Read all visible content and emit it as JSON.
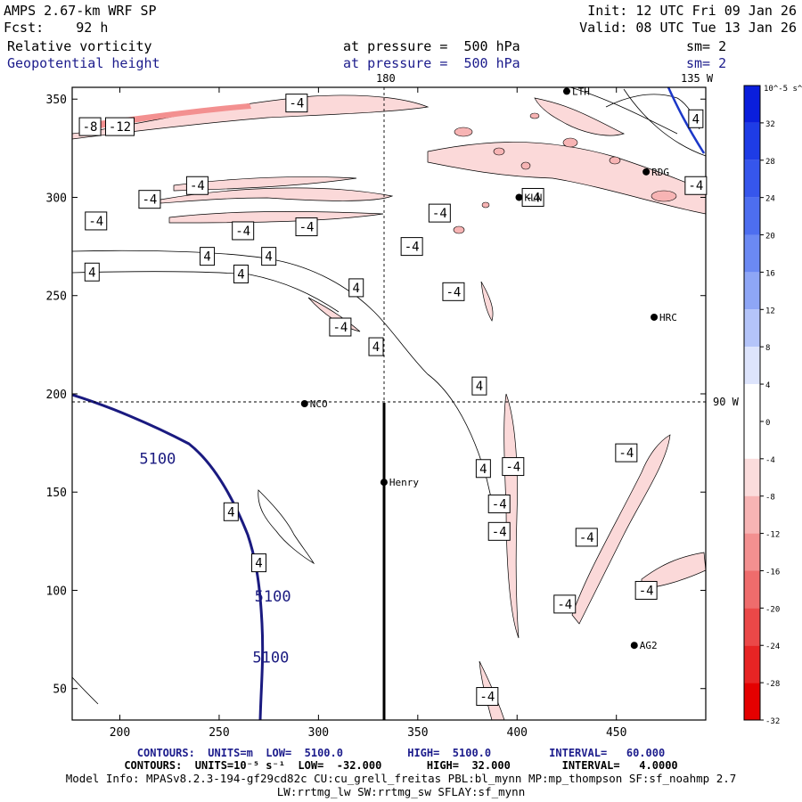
{
  "header": {
    "title": "AMPS 2.67-km WRF SP",
    "init": "Init: 12 UTC Fri 09 Jan 26",
    "fcst": "Fcst:    92 h",
    "valid": "Valid: 08 UTC Tue 13 Jan 26",
    "field1_name": "Relative vorticity",
    "field1_level": "at pressure =  500 hPa",
    "field1_sm": "sm= 2",
    "field2_name": "Geopotential height",
    "field2_level": "at pressure =  500 hPa",
    "field2_sm": "sm= 2",
    "meridian_label": "180",
    "meridian_label2": "135 W",
    "parallel_label": "90 W"
  },
  "stations": [
    {
      "name": "NCO",
      "x": 293,
      "y": 195
    },
    {
      "name": "Henry",
      "x": 333,
      "y": 155
    },
    {
      "name": "KLN",
      "x": 401,
      "y": 300
    },
    {
      "name": "RDG",
      "x": 465,
      "y": 313
    },
    {
      "name": "HRC",
      "x": 469,
      "y": 239
    },
    {
      "name": "AG2",
      "x": 459,
      "y": 72
    },
    {
      "name": "LTH",
      "x": 425,
      "y": 354
    }
  ],
  "chart_data": {
    "type": "contour",
    "title": "Relative vorticity / Geopotential height at 500 hPa",
    "x_ticks": [
      200,
      250,
      300,
      350,
      400,
      450
    ],
    "y_ticks": [
      50,
      100,
      150,
      200,
      250,
      300,
      350
    ],
    "xlim": [
      176,
      495
    ],
    "ylim": [
      34,
      356
    ],
    "height_contour_labels": [
      {
        "text": "5100",
        "x": 219,
        "y": 167
      },
      {
        "text": "5100",
        "x": 277,
        "y": 97
      },
      {
        "text": "5100",
        "x": 276,
        "y": 66
      }
    ],
    "vorticity_labels": [
      {
        "text": "-8",
        "x": 185,
        "y": 336
      },
      {
        "text": "-12",
        "x": 200,
        "y": 336
      },
      {
        "text": "-4",
        "x": 289,
        "y": 348
      },
      {
        "text": "-4",
        "x": 239,
        "y": 306
      },
      {
        "text": "-4",
        "x": 215,
        "y": 299
      },
      {
        "text": "-4",
        "x": 188,
        "y": 288
      },
      {
        "text": "-4",
        "x": 262,
        "y": 283
      },
      {
        "text": "-4",
        "x": 294,
        "y": 285
      },
      {
        "text": "-4",
        "x": 361,
        "y": 292
      },
      {
        "text": "-4",
        "x": 347,
        "y": 275
      },
      {
        "text": "4",
        "x": 244,
        "y": 270
      },
      {
        "text": "4",
        "x": 275,
        "y": 270
      },
      {
        "text": "4",
        "x": 186,
        "y": 262
      },
      {
        "text": "4",
        "x": 261,
        "y": 261
      },
      {
        "text": "4",
        "x": 319,
        "y": 254
      },
      {
        "text": "-4",
        "x": 368,
        "y": 252
      },
      {
        "text": "-4",
        "x": 311,
        "y": 234
      },
      {
        "text": "4",
        "x": 329,
        "y": 224
      },
      {
        "text": "4",
        "x": 381,
        "y": 204
      },
      {
        "text": "-4",
        "x": 408,
        "y": 300
      },
      {
        "text": "-4",
        "x": 490,
        "y": 306
      },
      {
        "text": "4",
        "x": 490,
        "y": 340
      },
      {
        "text": "-4",
        "x": 455,
        "y": 170
      },
      {
        "text": "4",
        "x": 383,
        "y": 162
      },
      {
        "text": "-4",
        "x": 398,
        "y": 163
      },
      {
        "text": "-4",
        "x": 391,
        "y": 144
      },
      {
        "text": "-4",
        "x": 391,
        "y": 130
      },
      {
        "text": "4",
        "x": 256,
        "y": 140
      },
      {
        "text": "4",
        "x": 270,
        "y": 114
      },
      {
        "text": "-4",
        "x": 435,
        "y": 127
      },
      {
        "text": "-4",
        "x": 465,
        "y": 100
      },
      {
        "text": "-4",
        "x": 424,
        "y": 93
      },
      {
        "text": "-4",
        "x": 385,
        "y": 46
      }
    ],
    "colorbar": {
      "unit": "10^-5 s^-1",
      "ticks": [
        32,
        28,
        24,
        20,
        16,
        12,
        8,
        4,
        0,
        -4,
        -8,
        -12,
        -16,
        -20,
        -24,
        -28,
        -32
      ],
      "colors": [
        "#0a1edc",
        "#1e3ce6",
        "#3656ec",
        "#4d6ef0",
        "#6b89f3",
        "#8ea6f6",
        "#b4c4f9",
        "#dde4fc",
        "#ffffff",
        "#ffffff",
        "#fbdcdc",
        "#f7b4b4",
        "#f39090",
        "#ef6c6c",
        "#eb4848",
        "#e72424",
        "#e40000"
      ]
    }
  },
  "footer": {
    "line1": "CONTOURS:  UNITS=m  LOW=  5100.0          HIGH=  5100.0         INTERVAL=   60.000",
    "line2": "CONTOURS:  UNITS=10⁻⁵ s⁻¹  LOW=  -32.000       HIGH=  32.000        INTERVAL=   4.0000",
    "line3": "Model Info: MPASv8.2.3-194-gf29cd82c CU:cu_grell_freitas PBL:bl_mynn MP:mp_thompson SF:sf_noahmp 2.7",
    "line4": "LW:rrtmg_lw SW:rrtmg_sw SFLAY:sf_mynn"
  }
}
